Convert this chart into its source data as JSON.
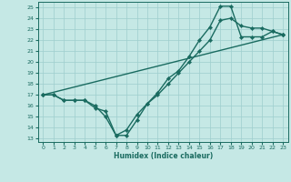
{
  "xlabel": "Humidex (Indice chaleur)",
  "xlim": [
    -0.5,
    23.5
  ],
  "ylim": [
    12.7,
    25.5
  ],
  "yticks": [
    13,
    14,
    15,
    16,
    17,
    18,
    19,
    20,
    21,
    22,
    23,
    24,
    25
  ],
  "xticks": [
    0,
    1,
    2,
    3,
    4,
    5,
    6,
    7,
    8,
    9,
    10,
    11,
    12,
    13,
    14,
    15,
    16,
    17,
    18,
    19,
    20,
    21,
    22,
    23
  ],
  "background_color": "#c5e8e5",
  "grid_color": "#9ecece",
  "line_color": "#1a6b60",
  "lines": [
    {
      "x": [
        0,
        1,
        2,
        3,
        4,
        5,
        6,
        7,
        8,
        9,
        10,
        11,
        12,
        13,
        14,
        15,
        16,
        17,
        18,
        19,
        20,
        21,
        22,
        23
      ],
      "y": [
        17,
        17,
        16.5,
        16.5,
        16.5,
        16,
        15,
        13.3,
        13.3,
        14.7,
        16.2,
        17.2,
        18.5,
        19.2,
        20.5,
        22,
        23.2,
        25.1,
        25.1,
        22.3,
        22.3,
        22.3,
        22.8,
        22.5
      ]
    },
    {
      "x": [
        0,
        1,
        2,
        3,
        4,
        5,
        6,
        7,
        8,
        9,
        10,
        11,
        12,
        13,
        14,
        15,
        16,
        17,
        18,
        19,
        20,
        21,
        22,
        23
      ],
      "y": [
        17,
        17,
        16.5,
        16.5,
        16.5,
        15.8,
        15.5,
        13.3,
        13.8,
        15.2,
        16.2,
        17,
        18,
        19,
        20,
        21,
        22,
        23.8,
        24.0,
        23.3,
        23.1,
        23.1,
        22.8,
        22.5
      ]
    },
    {
      "x": [
        0,
        23
      ],
      "y": [
        17,
        22.5
      ]
    }
  ],
  "marker": "D",
  "marker_size": 2.2,
  "line_width": 1.0
}
